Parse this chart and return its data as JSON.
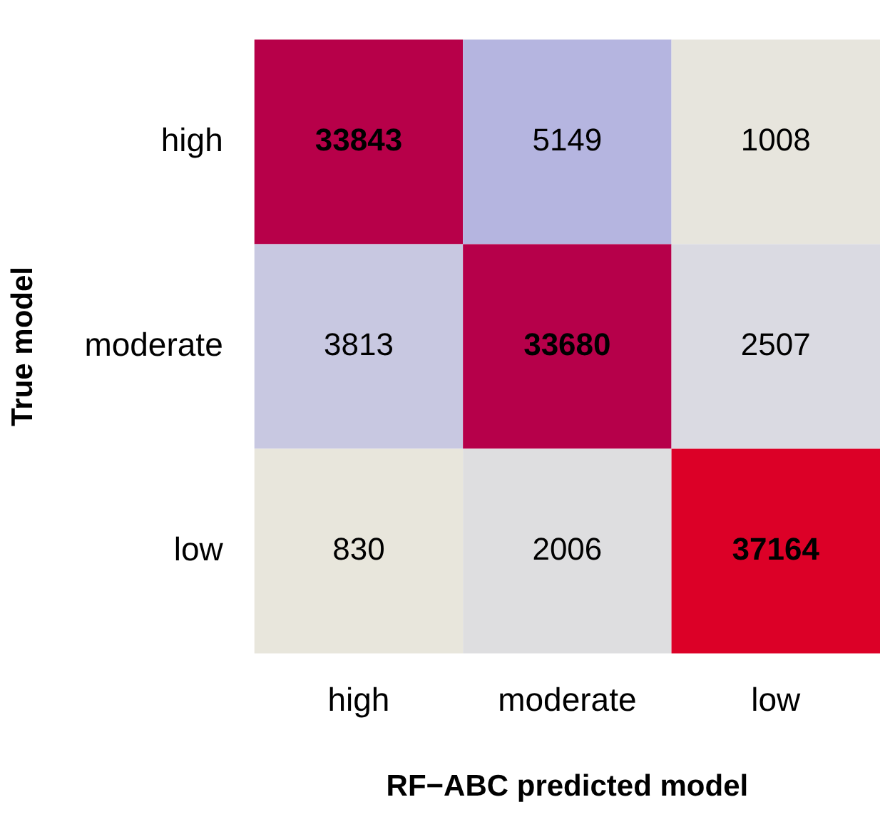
{
  "chart_data": {
    "type": "heatmap",
    "xlabel": "RF−ABC predicted model",
    "ylabel": "True model",
    "categories": [
      "high",
      "moderate",
      "low"
    ],
    "y_categories": [
      "high",
      "moderate",
      "low"
    ],
    "cells": [
      [
        33843,
        5149,
        1008
      ],
      [
        3813,
        33680,
        2507
      ],
      [
        830,
        2006,
        37164
      ]
    ],
    "data_labels": true
  }
}
